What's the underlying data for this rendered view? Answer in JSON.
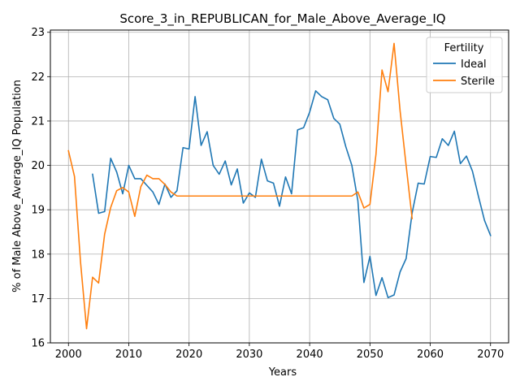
{
  "chart_data": {
    "type": "line",
    "title": "Score_3_in_REPUBLICAN_for_Male_Above_Average_IQ",
    "xlabel": "Years",
    "ylabel": "% of Male Above_Average_IQ Population",
    "xlim": [
      1997,
      2073
    ],
    "ylim": [
      16,
      23.05
    ],
    "xticks": [
      2000,
      2010,
      2020,
      2030,
      2040,
      2050,
      2060,
      2070
    ],
    "yticks": [
      16,
      17,
      18,
      19,
      20,
      21,
      22,
      23
    ],
    "grid": true,
    "legend": {
      "title": "Fertility",
      "position": "top-right"
    },
    "series": [
      {
        "name": "Ideal",
        "color": "#1f77b4",
        "x": [
          2004,
          2005,
          2006,
          2007,
          2008,
          2009,
          2010,
          2011,
          2012,
          2013,
          2014,
          2015,
          2016,
          2017,
          2018,
          2019,
          2020,
          2021,
          2022,
          2023,
          2024,
          2025,
          2026,
          2027,
          2028,
          2029,
          2030,
          2031,
          2032,
          2033,
          2034,
          2035,
          2036,
          2037,
          2038,
          2039,
          2040,
          2041,
          2042,
          2043,
          2044,
          2045,
          2046,
          2047,
          2048,
          2049,
          2050,
          2051,
          2052,
          2053,
          2054,
          2055,
          2056,
          2057,
          2058,
          2059,
          2060,
          2061,
          2062,
          2063,
          2064,
          2065,
          2066,
          2067,
          2068,
          2069,
          2070
        ],
        "y": [
          19.8,
          18.92,
          18.96,
          20.16,
          19.85,
          19.36,
          20.0,
          19.7,
          19.7,
          19.55,
          19.4,
          19.12,
          19.58,
          19.28,
          19.43,
          20.4,
          20.37,
          21.55,
          20.45,
          20.76,
          20.0,
          19.8,
          20.1,
          19.56,
          19.92,
          19.15,
          19.38,
          19.28,
          20.14,
          19.65,
          19.6,
          19.08,
          19.74,
          19.36,
          20.8,
          20.85,
          21.2,
          21.68,
          21.55,
          21.48,
          21.06,
          20.93,
          20.42,
          20.0,
          19.2,
          17.36,
          17.95,
          17.07,
          17.47,
          17.02,
          17.08,
          17.6,
          17.9,
          18.93,
          19.6,
          19.58,
          20.2,
          20.18,
          20.6,
          20.45,
          20.77,
          20.04,
          20.21,
          19.87,
          19.3,
          18.76,
          18.42
        ]
      },
      {
        "name": "Sterile",
        "color": "#ff7f0e",
        "x": [
          2000,
          2001,
          2002,
          2003,
          2004,
          2005,
          2006,
          2007,
          2008,
          2009,
          2010,
          2011,
          2012,
          2013,
          2014,
          2015,
          2016,
          2017,
          2018,
          2019,
          2020,
          2021,
          2022,
          2023,
          2024,
          2025,
          2026,
          2027,
          2028,
          2029,
          2030,
          2031,
          2032,
          2033,
          2034,
          2035,
          2036,
          2037,
          2038,
          2039,
          2040,
          2041,
          2042,
          2043,
          2044,
          2045,
          2046,
          2047,
          2048,
          2049,
          2050,
          2051,
          2052,
          2053,
          2054,
          2055,
          2056,
          2057
        ],
        "y": [
          20.33,
          19.75,
          17.82,
          16.32,
          17.48,
          17.35,
          18.45,
          19.05,
          19.43,
          19.5,
          19.4,
          18.85,
          19.52,
          19.78,
          19.7,
          19.7,
          19.57,
          19.4,
          19.31,
          19.31,
          19.31,
          19.31,
          19.31,
          19.31,
          19.31,
          19.31,
          19.31,
          19.31,
          19.31,
          19.31,
          19.31,
          19.31,
          19.31,
          19.31,
          19.31,
          19.31,
          19.31,
          19.31,
          19.31,
          19.31,
          19.31,
          19.31,
          19.31,
          19.31,
          19.31,
          19.31,
          19.31,
          19.31,
          19.4,
          19.04,
          19.12,
          20.25,
          22.15,
          21.66,
          22.75,
          21.23,
          20.0,
          18.8
        ]
      }
    ]
  }
}
